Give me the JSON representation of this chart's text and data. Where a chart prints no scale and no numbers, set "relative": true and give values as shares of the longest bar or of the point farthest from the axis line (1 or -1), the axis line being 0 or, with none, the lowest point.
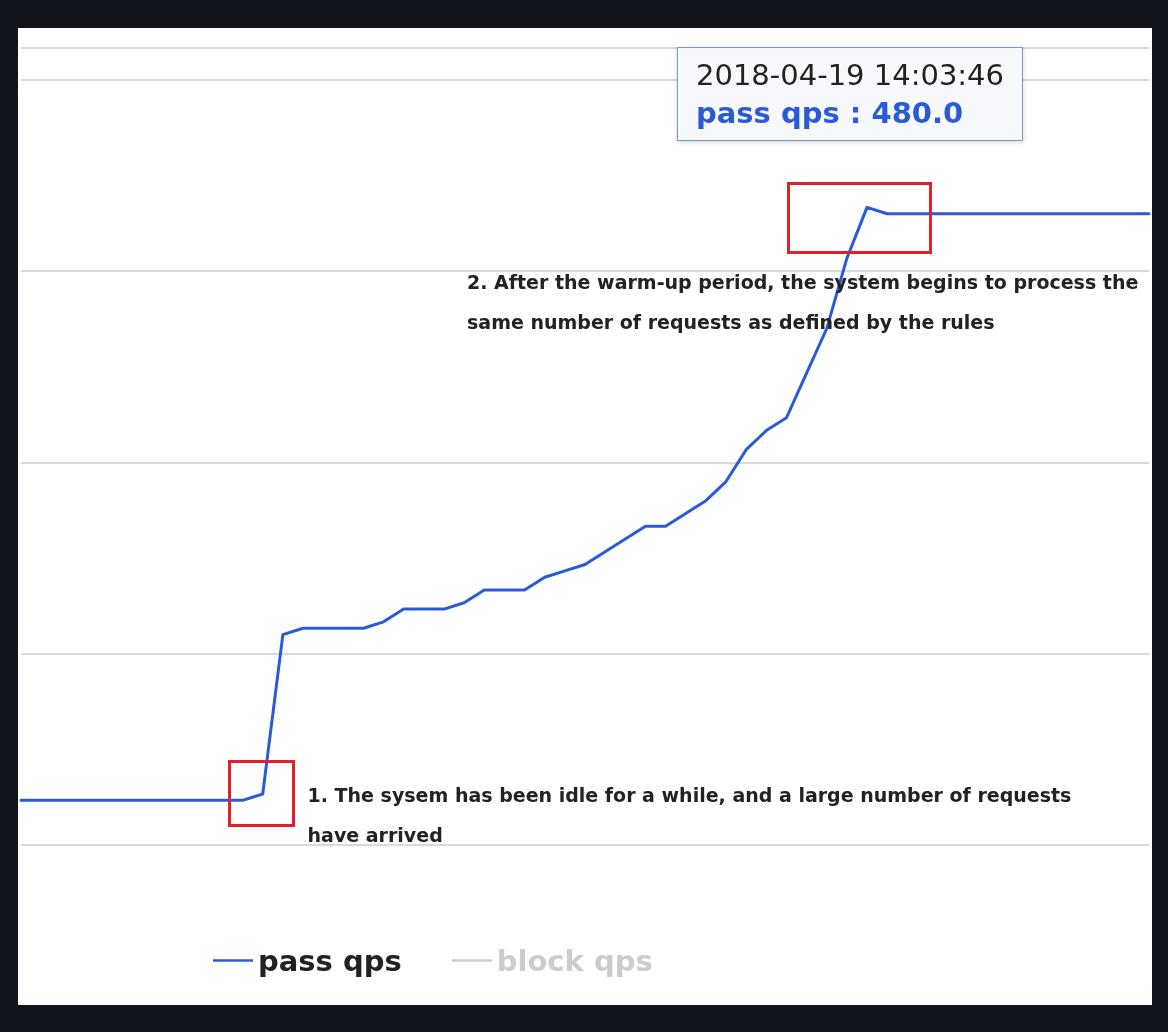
{
  "chart_data": {
    "type": "line",
    "relative": true,
    "grid": "y",
    "legend": "bottom left",
    "marker": "none",
    "line_style": "solid",
    "categories": [
      null,
      null,
      null,
      null,
      null,
      null,
      null,
      null,
      null,
      null,
      null,
      null,
      null,
      null,
      null,
      null,
      null,
      null,
      null,
      null,
      null,
      null,
      null,
      null,
      null,
      null,
      null,
      null,
      null,
      null,
      null,
      null,
      null,
      null,
      null,
      null,
      null,
      null,
      null,
      null,
      null,
      null,
      null,
      null,
      null,
      null,
      null,
      null,
      null,
      null,
      null,
      null,
      null,
      null,
      null,
      null,
      null
    ],
    "series": [
      {
        "name": "pass qps",
        "color": "#2a5bd7",
        "values": [
          0.07,
          0.07,
          0.07,
          0.07,
          0.07,
          0.07,
          0.07,
          0.07,
          0.07,
          0.07,
          0.07,
          0.07,
          0.08,
          0.33,
          0.34,
          0.34,
          0.34,
          0.34,
          0.35,
          0.37,
          0.37,
          0.37,
          0.38,
          0.4,
          0.4,
          0.4,
          0.42,
          0.43,
          0.44,
          0.46,
          0.48,
          0.5,
          0.5,
          0.52,
          0.54,
          0.57,
          0.62,
          0.65,
          0.67,
          0.74,
          0.81,
          0.92,
          1,
          0.99,
          0.99,
          0.99,
          0.99,
          0.99,
          0.99,
          0.99,
          0.99,
          0.99,
          0.99,
          0.99,
          0.99,
          0.99,
          0.99
        ]
      },
      {
        "name": "block qps",
        "color": "#cccccc",
        "values": [
          null,
          null,
          null,
          null,
          null,
          null,
          null,
          null,
          null,
          null,
          null,
          null,
          null,
          null,
          null,
          null,
          null,
          null,
          null,
          null,
          null,
          null,
          null,
          null,
          null,
          null,
          null,
          null,
          null,
          null,
          null,
          null,
          null,
          null,
          null,
          null,
          null,
          null,
          null,
          null,
          null,
          null,
          null,
          null,
          null,
          null,
          null,
          null,
          null,
          null,
          null,
          null,
          null,
          null,
          null,
          null,
          null
        ]
      }
    ],
    "annotations": [
      "2018-04-19 14:03:46",
      "pass qps : 480.0",
      "1. The sysem has been idle for a while, and a large number of requests have arrived",
      "2. After the warm-up period, the system begins to process the same number of requests as defined by the rules"
    ]
  }
}
